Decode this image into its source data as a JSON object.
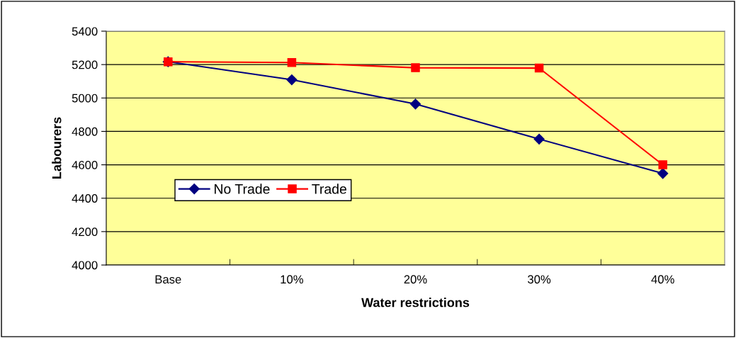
{
  "chart_data": {
    "type": "line",
    "xlabel": "Water restrictions",
    "ylabel": "Labourers",
    "categories": [
      "Base",
      "10%",
      "20%",
      "30%",
      "40%"
    ],
    "series": [
      {
        "name": "No Trade",
        "color": "#000080",
        "marker": "diamond",
        "values": [
          5217,
          5109,
          4964,
          4754,
          4548
        ]
      },
      {
        "name": "Trade",
        "color": "#ff0000",
        "marker": "square",
        "values": [
          5217,
          5212,
          5181,
          5179,
          4600
        ]
      }
    ],
    "ylim": [
      4000,
      5400
    ],
    "yticks": [
      4000,
      4200,
      4400,
      4600,
      4800,
      5000,
      5200,
      5400
    ],
    "grid": "y",
    "legend": "center left"
  }
}
